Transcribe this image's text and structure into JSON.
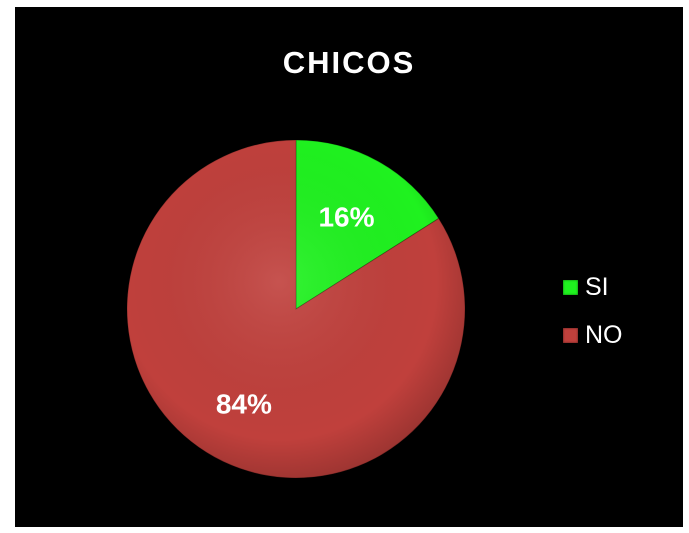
{
  "chart_data": {
    "type": "pie",
    "title": "CHICOS",
    "categories": [
      "SI",
      "NO"
    ],
    "values": [
      16,
      84
    ],
    "value_labels": [
      "16%",
      "84%"
    ],
    "colors": [
      "#1ff21f",
      "#c0403c"
    ],
    "legend": "right",
    "background": "#000000"
  }
}
